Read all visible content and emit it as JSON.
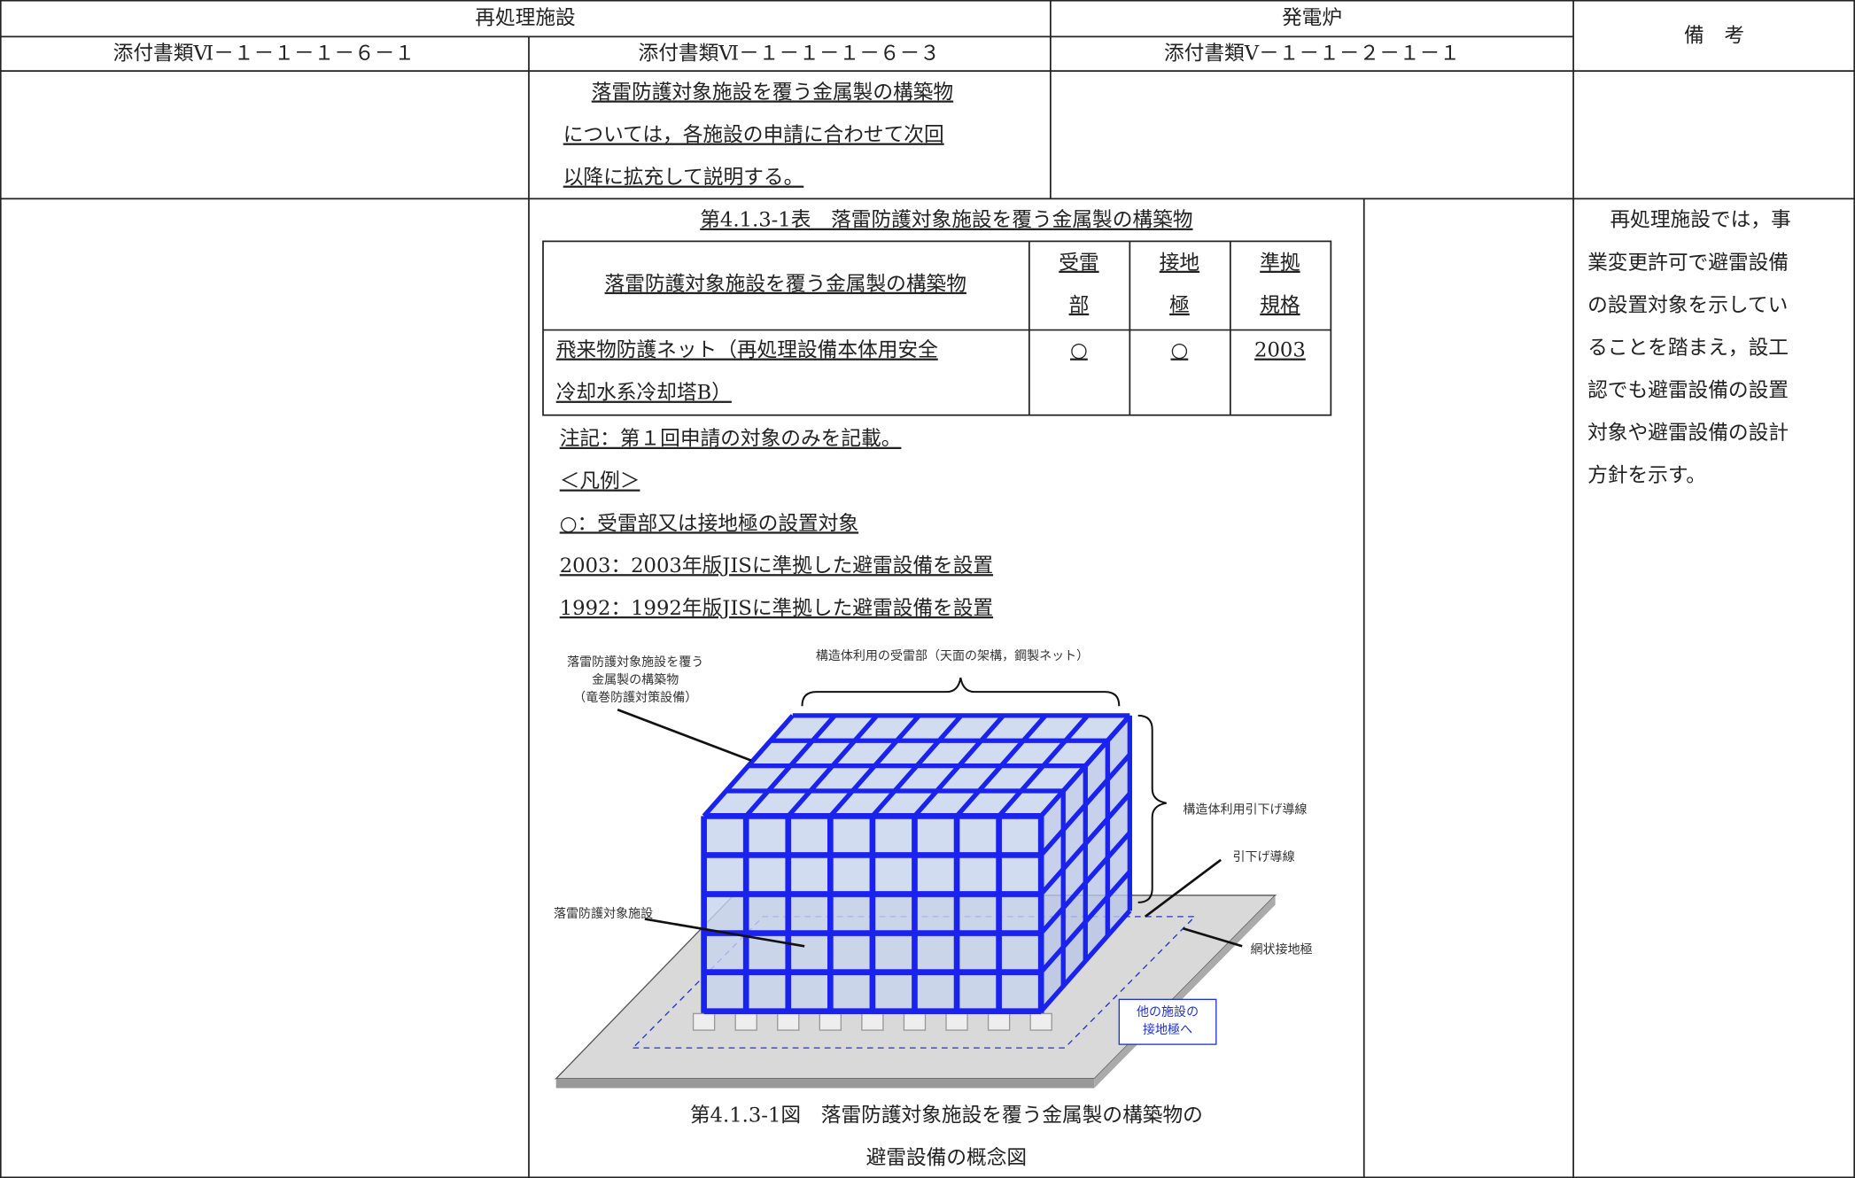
{
  "header": {
    "reprocessing": "再処理施設",
    "power_reactor": "発電炉",
    "remarks": "備　考",
    "doc_1": "添付書類Ⅵ－１－１－１－６－１",
    "doc_2": "添付書類Ⅵ－１－１－１－６－３",
    "doc_3": "添付書類Ⅴ－１－１－２－１－１"
  },
  "row1": {
    "lines": [
      "落雷防護対象施設を覆う金属製の構築物",
      "については，各施設の申請に合わせて次回",
      "以降に拡充して説明する。"
    ]
  },
  "row2": {
    "table_title": "第4.1.3-1表　落雷防護対象施設を覆う金属製の構築物",
    "table": {
      "header": [
        [
          "落雷防護対象施設を覆う金属製の構築物"
        ],
        [
          "受雷",
          "部"
        ],
        [
          "接地",
          "極"
        ],
        [
          "準拠",
          "規格"
        ]
      ],
      "rows": [
        [
          [
            "飛来物防護ネット（再処理設備本体用安全",
            "冷却水系冷却塔B）"
          ],
          [
            "○"
          ],
          [
            "○"
          ],
          [
            "2003"
          ]
        ]
      ]
    },
    "notes": [
      "注記：第１回申請の対象のみを記載。",
      "＜凡例＞",
      "○：受雷部又は接地極の設置対象",
      "2003：2003年版JISに準拠した避雷設備を設置",
      "1992：1992年版JISに準拠した避雷設備を設置"
    ],
    "figure": {
      "covering_structure": [
        "落雷防護対象施設を覆う",
        "金属製の構築物",
        "（竜巻防護対策設備）"
      ],
      "roof_receptor": "構造体利用の受雷部（天面の架構，鋼製ネット）",
      "structural_down_conductor": "構造体利用引下げ導線",
      "down_conductor": "引下げ導線",
      "protected_facility": "落雷防護対象施設",
      "mesh_ground": "網状接地極",
      "other_ground": [
        "他の施設の",
        "接地極へ"
      ]
    },
    "caption": [
      "第4.1.3-1図　落雷防護対象施設を覆う金属製の構築物の",
      "避雷設備の概念図"
    ],
    "remarks": [
      "再処理施設では，事",
      "業変更許可で避雷設備",
      "の設置対象を示してい",
      "ることを踏まえ，設工",
      "認でも避雷設備の設置",
      "対象や避雷設備の設計",
      "方針を示す。"
    ]
  }
}
